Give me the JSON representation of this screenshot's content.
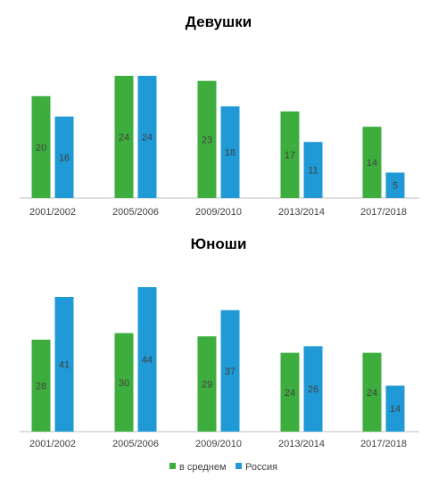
{
  "legend": {
    "placement": "bottom-center",
    "items": [
      {
        "label": "в среднем",
        "color": "#3dae3d"
      },
      {
        "label": "Россия",
        "color": "#1f9ad6"
      }
    ]
  },
  "chart_data": [
    {
      "type": "bar",
      "title": "Девушки",
      "categories": [
        "2001/2002",
        "2005/2006",
        "2009/2010",
        "2013/2014",
        "2017/2018"
      ],
      "series": [
        {
          "name": "в среднем",
          "color": "#3dae3d",
          "values": [
            20,
            24,
            23,
            17,
            14
          ]
        },
        {
          "name": "Россия",
          "color": "#1f9ad6",
          "values": [
            16,
            24,
            18,
            11,
            5
          ]
        }
      ],
      "ylim": [
        0,
        24
      ],
      "grid": false,
      "data_labels": true
    },
    {
      "type": "bar",
      "title": "Юноши",
      "categories": [
        "2001/2002",
        "2005/2006",
        "2009/2010",
        "2013/2014",
        "2017/2018"
      ],
      "series": [
        {
          "name": "в среднем",
          "color": "#3dae3d",
          "values": [
            28,
            30,
            29,
            24,
            24
          ]
        },
        {
          "name": "Россия",
          "color": "#1f9ad6",
          "values": [
            41,
            44,
            37,
            26,
            14
          ]
        }
      ],
      "ylim": [
        0,
        44
      ],
      "grid": false,
      "data_labels": true
    }
  ]
}
